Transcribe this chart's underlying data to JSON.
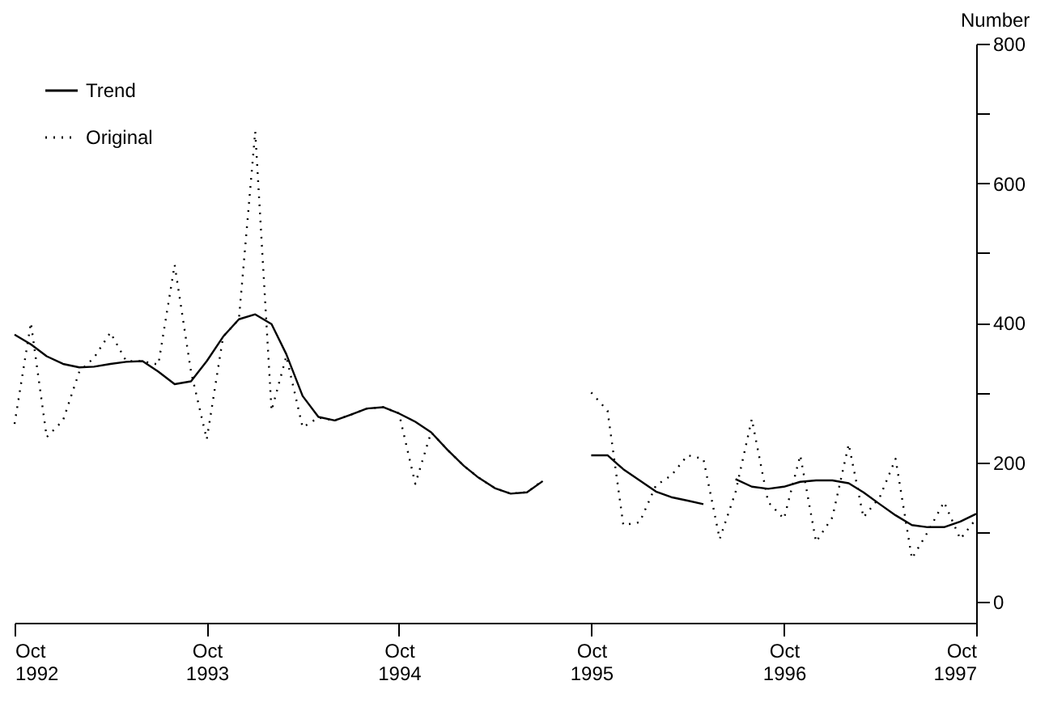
{
  "chart_data": {
    "type": "line",
    "ylabel": "Number",
    "x": [
      "1992-10",
      "1992-11",
      "1992-12",
      "1993-01",
      "1993-02",
      "1993-03",
      "1993-04",
      "1993-05",
      "1993-06",
      "1993-07",
      "1993-08",
      "1993-09",
      "1993-10",
      "1993-11",
      "1993-12",
      "1994-01",
      "1994-02",
      "1994-03",
      "1994-04",
      "1994-05",
      "1994-06",
      "1994-07",
      "1994-08",
      "1994-09",
      "1994-10",
      "1994-11",
      "1994-12",
      "1995-01",
      "1995-02",
      "1995-03",
      "1995-04",
      "1995-05",
      "1995-06",
      "1995-07",
      "1995-08",
      "1995-09",
      "1995-10",
      "1995-11",
      "1995-12",
      "1996-01",
      "1996-02",
      "1996-03",
      "1996-04",
      "1996-05",
      "1996-06",
      "1996-07",
      "1996-08",
      "1996-09",
      "1996-10",
      "1996-11",
      "1996-12",
      "1997-01",
      "1997-02",
      "1997-03",
      "1997-04",
      "1997-05",
      "1997-06",
      "1997-07",
      "1997-08",
      "1997-09",
      "1997-10"
    ],
    "series": [
      {
        "name": "Trend",
        "color": "#000000",
        "line_style": "solid",
        "values": [
          383,
          369,
          352,
          341,
          336,
          337,
          341,
          344,
          345,
          330,
          312,
          316,
          345,
          380,
          405,
          412,
          398,
          355,
          295,
          265,
          260,
          268,
          277,
          279,
          270,
          258,
          243,
          218,
          195,
          178,
          163,
          155,
          157,
          173,
          null,
          null,
          210,
          210,
          190,
          174,
          158,
          150,
          145,
          140,
          null,
          176,
          165,
          162,
          165,
          172,
          174,
          174,
          170,
          157,
          140,
          124,
          110,
          107,
          107,
          115,
          126
        ]
      },
      {
        "name": "Original",
        "color": "#000000",
        "line_style": "dotted",
        "values": [
          255,
          400,
          236,
          260,
          330,
          350,
          386,
          345,
          345,
          340,
          483,
          330,
          233,
          380,
          405,
          674,
          274,
          352,
          250,
          264,
          260,
          268,
          277,
          279,
          270,
          169,
          243,
          218,
          195,
          178,
          163,
          155,
          157,
          174,
          null,
          null,
          300,
          274,
          110,
          114,
          167,
          181,
          210,
          205,
          90,
          157,
          262,
          143,
          119,
          210,
          86,
          121,
          226,
          121,
          150,
          205,
          62,
          100,
          143,
          90,
          119
        ]
      }
    ],
    "xlim": [
      "1992-10",
      "1997-10"
    ],
    "xticks": [
      {
        "value": "1992-10",
        "label": "Oct\n1992"
      },
      {
        "value": "1993-10",
        "label": "Oct\n1993"
      },
      {
        "value": "1994-10",
        "label": "Oct\n1994"
      },
      {
        "value": "1995-10",
        "label": "Oct\n1995"
      },
      {
        "value": "1996-10",
        "label": "Oct\n1996"
      },
      {
        "value": "1997-10",
        "label": "Oct\n1997"
      }
    ],
    "ylim": [
      -30,
      800
    ],
    "yticks": [
      0,
      {
        "value": 100,
        "label": null
      },
      200,
      {
        "value": 300,
        "label": null
      },
      400,
      {
        "value": 500,
        "label": null
      },
      600,
      {
        "value": 700,
        "label": null
      },
      800
    ],
    "grid": false,
    "legend": "top left"
  }
}
